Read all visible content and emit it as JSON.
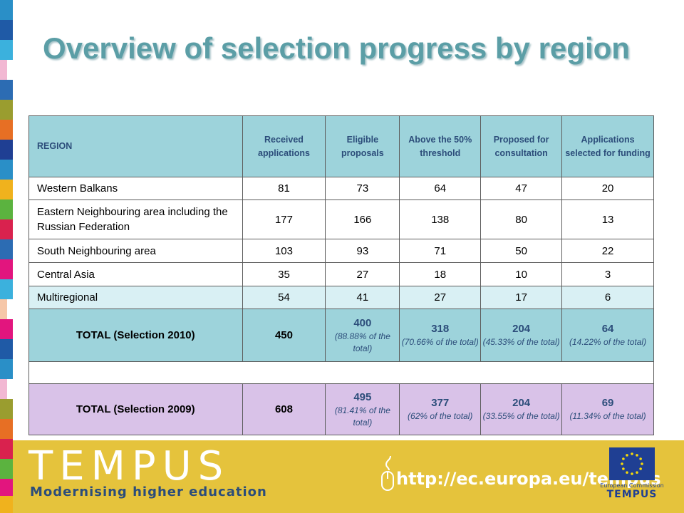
{
  "title": "Overview of selection progress by region",
  "colors": {
    "title": "#5b9ea6",
    "header_bg": "#9dd3db",
    "light_row_bg": "#d9f0f4",
    "total_2009_bg": "#d9c2e8",
    "footer_bg": "#e5c33c",
    "text_blue": "#2c4d7a"
  },
  "table": {
    "headers": {
      "region": "REGION",
      "received": "Received applications",
      "eligible": "Eligible proposals",
      "above": "Above the 50% threshold",
      "proposed": "Proposed for consultation",
      "selected": "Applications selected for funding"
    },
    "rows": [
      {
        "region": "Western Balkans",
        "received": "81",
        "eligible": "73",
        "above": "64",
        "proposed": "47",
        "selected": "20"
      },
      {
        "region": "Eastern Neighbouring area including the Russian Federation",
        "received": "177",
        "eligible": "166",
        "above": "138",
        "proposed": "80",
        "selected": "13"
      },
      {
        "region": "South Neighbouring area",
        "received": "103",
        "eligible": "93",
        "above": "71",
        "proposed": "50",
        "selected": "22"
      },
      {
        "region": "Central Asia",
        "received": "35",
        "eligible": "27",
        "above": "18",
        "proposed": "10",
        "selected": "3"
      },
      {
        "region": "Multiregional",
        "received": "54",
        "eligible": "41",
        "above": "27",
        "proposed": "17",
        "selected": "6"
      }
    ],
    "total_2010": {
      "label": "TOTAL (Selection 2010)",
      "received": "450",
      "eligible": "400",
      "eligible_pct": "(88.88% of the total)",
      "above": "318",
      "above_pct": "(70.66% of the total)",
      "proposed": "204",
      "proposed_pct": "(45.33% of the total)",
      "selected": "64",
      "selected_pct": "(14.22% of the total)"
    },
    "total_2009": {
      "label": "TOTAL (Selection 2009)",
      "received": "608",
      "eligible": "495",
      "eligible_pct": "(81.41% of the total)",
      "above": "377",
      "above_pct": "(62% of the total)",
      "proposed": "204",
      "proposed_pct": "(33.55% of the total)",
      "selected": "69",
      "selected_pct": "(11.34% of the total)"
    }
  },
  "footer": {
    "logo": "TEMPUS",
    "tagline": "Modernising higher education",
    "url": "http://ec.europa.eu/tempus",
    "ec_label": "European Commission",
    "ec_program": "TEMPUS"
  }
}
